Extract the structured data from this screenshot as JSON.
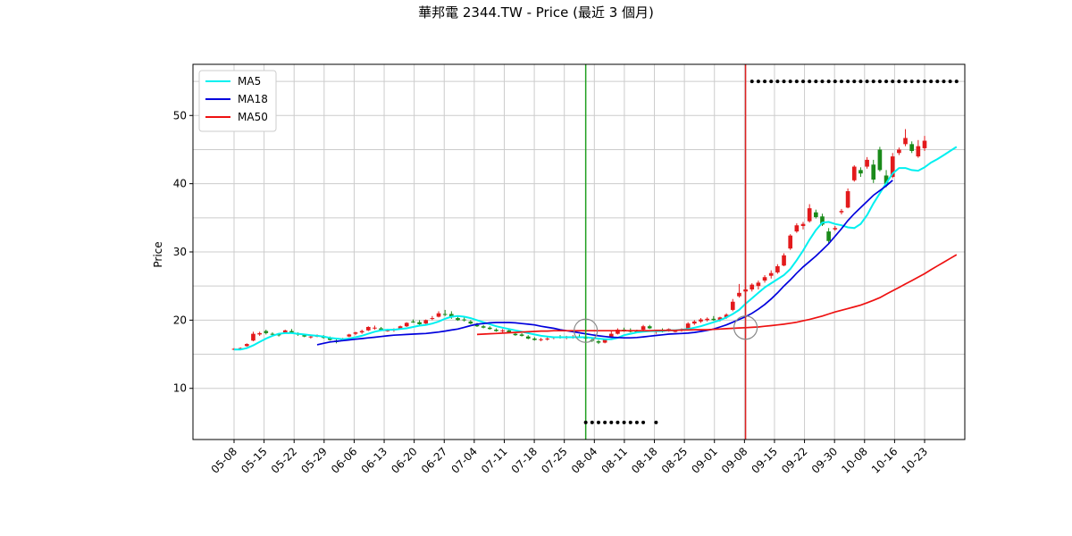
{
  "chart_data": {
    "type": "candlestick",
    "title": "華邦電 2344.TW - Price (最近 3 個月)",
    "xlabel": "",
    "ylabel": "Price",
    "ylim": [
      2.5,
      57.5
    ],
    "yticks": [
      10,
      20,
      30,
      40,
      50
    ],
    "grid": true,
    "legend_position": "top-left",
    "x_tick_labels": [
      "05-08",
      "05-15",
      "05-22",
      "05-29",
      "06-06",
      "06-13",
      "06-20",
      "06-27",
      "07-04",
      "07-11",
      "07-18",
      "07-25",
      "08-04",
      "08-11",
      "08-18",
      "08-25",
      "09-01",
      "09-08",
      "09-15",
      "09-22",
      "09-30",
      "10-08",
      "10-16",
      "10-23"
    ],
    "colors": {
      "up": "#e31a1c",
      "down": "#1a8a1a",
      "ma5": "#00f0f0",
      "ma18": "#0000dd",
      "ma50": "#ee1111",
      "buy_line": "#22a022",
      "sell_line": "#dd2222",
      "grid": "#cccccc"
    },
    "candles": [
      [
        15.7,
        15.9,
        15.6,
        15.8
      ],
      [
        15.8,
        16.0,
        15.7,
        15.9
      ],
      [
        16.2,
        16.6,
        16.1,
        16.5
      ],
      [
        17.0,
        18.3,
        16.9,
        18.0
      ],
      [
        17.9,
        18.3,
        17.7,
        18.1
      ],
      [
        18.4,
        18.6,
        17.9,
        18.1
      ],
      [
        18.0,
        18.2,
        17.7,
        17.9
      ],
      [
        17.9,
        18.1,
        17.6,
        17.8
      ],
      [
        18.2,
        18.6,
        18.1,
        18.5
      ],
      [
        18.4,
        18.7,
        18.1,
        18.2
      ],
      [
        18.0,
        18.2,
        17.7,
        17.9
      ],
      [
        17.8,
        18.0,
        17.5,
        17.6
      ],
      [
        17.5,
        17.8,
        17.3,
        17.6
      ],
      [
        17.7,
        17.9,
        17.5,
        17.7
      ],
      [
        17.6,
        17.8,
        17.3,
        17.4
      ],
      [
        17.4,
        17.6,
        17.0,
        17.1
      ],
      [
        17.0,
        17.3,
        16.6,
        16.8
      ],
      [
        17.0,
        17.4,
        16.9,
        17.3
      ],
      [
        17.6,
        18.0,
        17.5,
        17.9
      ],
      [
        18.0,
        18.3,
        17.8,
        18.2
      ],
      [
        18.2,
        18.6,
        18.0,
        18.4
      ],
      [
        18.5,
        19.1,
        18.4,
        19.0
      ],
      [
        18.8,
        19.2,
        18.6,
        18.9
      ],
      [
        18.8,
        19.0,
        18.4,
        18.5
      ],
      [
        18.5,
        18.7,
        18.3,
        18.5
      ],
      [
        18.5,
        18.8,
        18.3,
        18.7
      ],
      [
        18.8,
        19.2,
        18.7,
        19.1
      ],
      [
        19.1,
        19.7,
        19.0,
        19.6
      ],
      [
        19.8,
        20.1,
        19.6,
        19.7
      ],
      [
        19.7,
        20.0,
        19.3,
        19.4
      ],
      [
        19.5,
        20.1,
        19.4,
        20.0
      ],
      [
        20.2,
        20.6,
        20.0,
        20.3
      ],
      [
        20.5,
        21.3,
        20.4,
        21.0
      ],
      [
        20.9,
        21.5,
        20.6,
        20.8
      ],
      [
        20.9,
        21.3,
        20.2,
        20.4
      ],
      [
        20.3,
        20.6,
        19.9,
        20.0
      ],
      [
        20.1,
        20.4,
        19.8,
        20.0
      ],
      [
        19.8,
        20.0,
        19.4,
        19.5
      ],
      [
        19.3,
        19.6,
        19.0,
        19.1
      ],
      [
        19.1,
        19.3,
        18.8,
        18.9
      ],
      [
        18.9,
        19.1,
        18.6,
        18.7
      ],
      [
        18.6,
        18.8,
        18.3,
        18.4
      ],
      [
        18.4,
        18.7,
        18.2,
        18.5
      ],
      [
        18.5,
        18.7,
        18.1,
        18.2
      ],
      [
        18.0,
        18.2,
        17.7,
        17.8
      ],
      [
        17.9,
        18.1,
        17.6,
        17.7
      ],
      [
        17.6,
        17.8,
        17.2,
        17.3
      ],
      [
        17.3,
        17.5,
        17.0,
        17.1
      ],
      [
        17.1,
        17.4,
        16.9,
        17.2
      ],
      [
        17.2,
        17.5,
        17.0,
        17.3
      ],
      [
        17.4,
        17.6,
        17.2,
        17.5
      ],
      [
        17.6,
        17.8,
        17.3,
        17.4
      ],
      [
        17.4,
        17.7,
        17.2,
        17.5
      ],
      [
        17.5,
        17.8,
        17.3,
        17.6
      ],
      [
        17.6,
        17.9,
        17.4,
        17.5
      ],
      [
        17.5,
        17.7,
        17.2,
        17.3
      ],
      [
        17.1,
        17.3,
        16.8,
        17.0
      ],
      [
        16.9,
        17.1,
        16.5,
        16.7
      ],
      [
        16.7,
        17.3,
        16.6,
        17.2
      ],
      [
        17.5,
        18.5,
        17.4,
        18.0
      ],
      [
        18.0,
        18.8,
        17.9,
        18.6
      ],
      [
        18.6,
        18.9,
        18.3,
        18.4
      ],
      [
        18.5,
        18.8,
        18.2,
        18.3
      ],
      [
        18.4,
        18.6,
        18.1,
        18.2
      ],
      [
        18.6,
        19.3,
        18.5,
        19.1
      ],
      [
        19.1,
        19.3,
        18.7,
        18.8
      ],
      [
        18.3,
        18.6,
        18.0,
        18.4
      ],
      [
        18.5,
        18.8,
        18.2,
        18.3
      ],
      [
        18.5,
        18.8,
        18.3,
        18.7
      ],
      [
        18.4,
        18.6,
        18.2,
        18.4
      ],
      [
        18.5,
        18.8,
        18.3,
        18.6
      ],
      [
        18.8,
        19.7,
        18.7,
        19.5
      ],
      [
        19.5,
        20.0,
        19.3,
        19.8
      ],
      [
        19.8,
        20.3,
        19.6,
        20.1
      ],
      [
        20.0,
        20.4,
        19.8,
        20.2
      ],
      [
        20.2,
        20.6,
        19.9,
        20.0
      ],
      [
        20.0,
        20.5,
        19.8,
        20.4
      ],
      [
        20.4,
        21.0,
        20.2,
        20.8
      ],
      [
        21.5,
        23.1,
        21.3,
        22.7
      ],
      [
        23.5,
        25.3,
        23.3,
        24.0
      ],
      [
        24.2,
        24.8,
        23.8,
        24.5
      ],
      [
        24.5,
        25.4,
        24.2,
        25.2
      ],
      [
        25.0,
        25.8,
        24.5,
        25.5
      ],
      [
        25.8,
        26.6,
        25.5,
        26.3
      ],
      [
        26.5,
        27.3,
        26.1,
        26.9
      ],
      [
        27.0,
        28.2,
        26.8,
        27.9
      ],
      [
        28.0,
        29.8,
        27.9,
        29.5
      ],
      [
        30.5,
        32.6,
        30.3,
        32.4
      ],
      [
        33.0,
        34.2,
        32.8,
        33.9
      ],
      [
        33.8,
        34.4,
        33.3,
        34.1
      ],
      [
        34.5,
        37.0,
        34.3,
        36.4
      ],
      [
        35.8,
        36.2,
        34.9,
        35.1
      ],
      [
        35.2,
        35.6,
        33.8,
        34.0
      ],
      [
        33.0,
        33.5,
        31.2,
        31.6
      ],
      [
        33.3,
        33.8,
        33.1,
        33.5
      ],
      [
        35.8,
        36.3,
        35.5,
        36.0
      ],
      [
        36.5,
        39.3,
        36.4,
        38.9
      ],
      [
        40.5,
        42.7,
        40.3,
        42.5
      ],
      [
        42.0,
        42.4,
        41.0,
        41.5
      ],
      [
        42.5,
        43.9,
        42.2,
        43.5
      ],
      [
        42.8,
        43.5,
        40.1,
        40.6
      ],
      [
        45.0,
        45.4,
        41.8,
        42.0
      ],
      [
        41.2,
        42.0,
        39.5,
        40.0
      ],
      [
        41.0,
        44.5,
        40.8,
        44.0
      ],
      [
        44.5,
        45.3,
        44.2,
        45.0
      ],
      [
        45.8,
        48.0,
        45.5,
        46.7
      ],
      [
        45.8,
        46.2,
        44.5,
        44.8
      ],
      [
        44.0,
        46.4,
        43.8,
        45.5
      ],
      [
        45.2,
        47.0,
        44.8,
        46.3
      ]
    ],
    "series": [
      {
        "name": "MA5",
        "values": [
          15.7,
          15.7,
          15.9,
          16.3,
          16.8,
          17.3,
          17.7,
          18.0,
          18.1,
          18.1,
          18.0,
          17.9,
          17.8,
          17.7,
          17.6,
          17.4,
          17.3,
          17.2,
          17.3,
          17.5,
          17.7,
          18.0,
          18.3,
          18.5,
          18.6,
          18.6,
          18.7,
          18.8,
          19.0,
          19.2,
          19.3,
          19.5,
          19.8,
          20.2,
          20.5,
          20.6,
          20.5,
          20.3,
          20.0,
          19.7,
          19.4,
          19.1,
          18.9,
          18.7,
          18.5,
          18.3,
          18.1,
          17.9,
          17.7,
          17.6,
          17.5,
          17.5,
          17.5,
          17.5,
          17.5,
          17.5,
          17.4,
          17.3,
          17.2,
          17.2,
          17.4,
          17.8,
          18.0,
          18.2,
          18.3,
          18.4,
          18.4,
          18.4,
          18.5,
          18.5,
          18.6,
          18.7,
          18.9,
          19.1,
          19.4,
          19.7,
          20.0,
          20.4,
          20.9,
          21.5,
          22.4,
          23.2,
          24.0,
          24.8,
          25.4,
          26.0,
          26.6,
          27.5,
          28.8,
          30.2,
          31.8,
          33.2,
          34.3,
          34.4,
          34.1,
          33.9,
          33.6,
          33.5,
          34.1,
          35.4,
          37.1,
          38.6,
          40.1,
          41.5,
          42.3,
          42.3,
          42.0,
          41.9,
          42.4,
          43.1,
          43.6,
          44.2,
          44.8,
          45.4
        ]
      },
      {
        "name": "MA18",
        "start": 13,
        "values": [
          16.4,
          16.6,
          16.8,
          16.9,
          17.0,
          17.1,
          17.2,
          17.3,
          17.4,
          17.5,
          17.6,
          17.7,
          17.8,
          17.85,
          17.9,
          17.95,
          18.0,
          18.05,
          18.15,
          18.25,
          18.4,
          18.55,
          18.7,
          18.95,
          19.2,
          19.4,
          19.5,
          19.6,
          19.65,
          19.65,
          19.65,
          19.6,
          19.5,
          19.4,
          19.3,
          19.1,
          18.95,
          18.8,
          18.6,
          18.45,
          18.3,
          18.15,
          18.0,
          17.85,
          17.7,
          17.6,
          17.5,
          17.45,
          17.4,
          17.4,
          17.45,
          17.55,
          17.65,
          17.75,
          17.85,
          17.95,
          18.0,
          18.05,
          18.1,
          18.2,
          18.35,
          18.5,
          18.7,
          19.0,
          19.3,
          19.7,
          20.1,
          20.5,
          21.0,
          21.6,
          22.3,
          23.1,
          24.0,
          25.0,
          25.9,
          26.9,
          27.8,
          28.6,
          29.4,
          30.3,
          31.2,
          32.3,
          33.4,
          34.6,
          35.6,
          36.5,
          37.4,
          38.3,
          39.0,
          39.7,
          40.5
        ]
      },
      {
        "name": "MA50",
        "start": 38,
        "values": [
          17.9,
          17.95,
          18.0,
          18.05,
          18.1,
          18.15,
          18.2,
          18.25,
          18.3,
          18.35,
          18.4,
          18.4,
          18.45,
          18.45,
          18.45,
          18.45,
          18.45,
          18.45,
          18.45,
          18.45,
          18.45,
          18.45,
          18.45,
          18.45,
          18.45,
          18.45,
          18.45,
          18.45,
          18.5,
          18.5,
          18.5,
          18.5,
          18.55,
          18.55,
          18.6,
          18.6,
          18.6,
          18.65,
          18.7,
          18.75,
          18.8,
          18.85,
          18.9,
          18.95,
          19.0,
          19.1,
          19.2,
          19.3,
          19.4,
          19.55,
          19.7,
          19.9,
          20.1,
          20.35,
          20.6,
          20.9,
          21.2,
          21.45,
          21.7,
          21.95,
          22.2,
          22.55,
          22.9,
          23.3,
          23.8,
          24.3,
          24.8,
          25.3,
          25.8,
          26.3,
          26.8,
          27.4,
          27.95,
          28.5,
          29.05,
          29.6
        ]
      }
    ],
    "signals": {
      "buy_index": 55,
      "sell_index": 80,
      "buy_dots": {
        "y": 5,
        "indices": [
          55,
          56,
          57,
          58,
          59,
          60,
          61,
          62,
          63,
          64,
          66
        ]
      },
      "sell_dots": {
        "y": 55,
        "start": 81,
        "end": 113
      }
    }
  }
}
